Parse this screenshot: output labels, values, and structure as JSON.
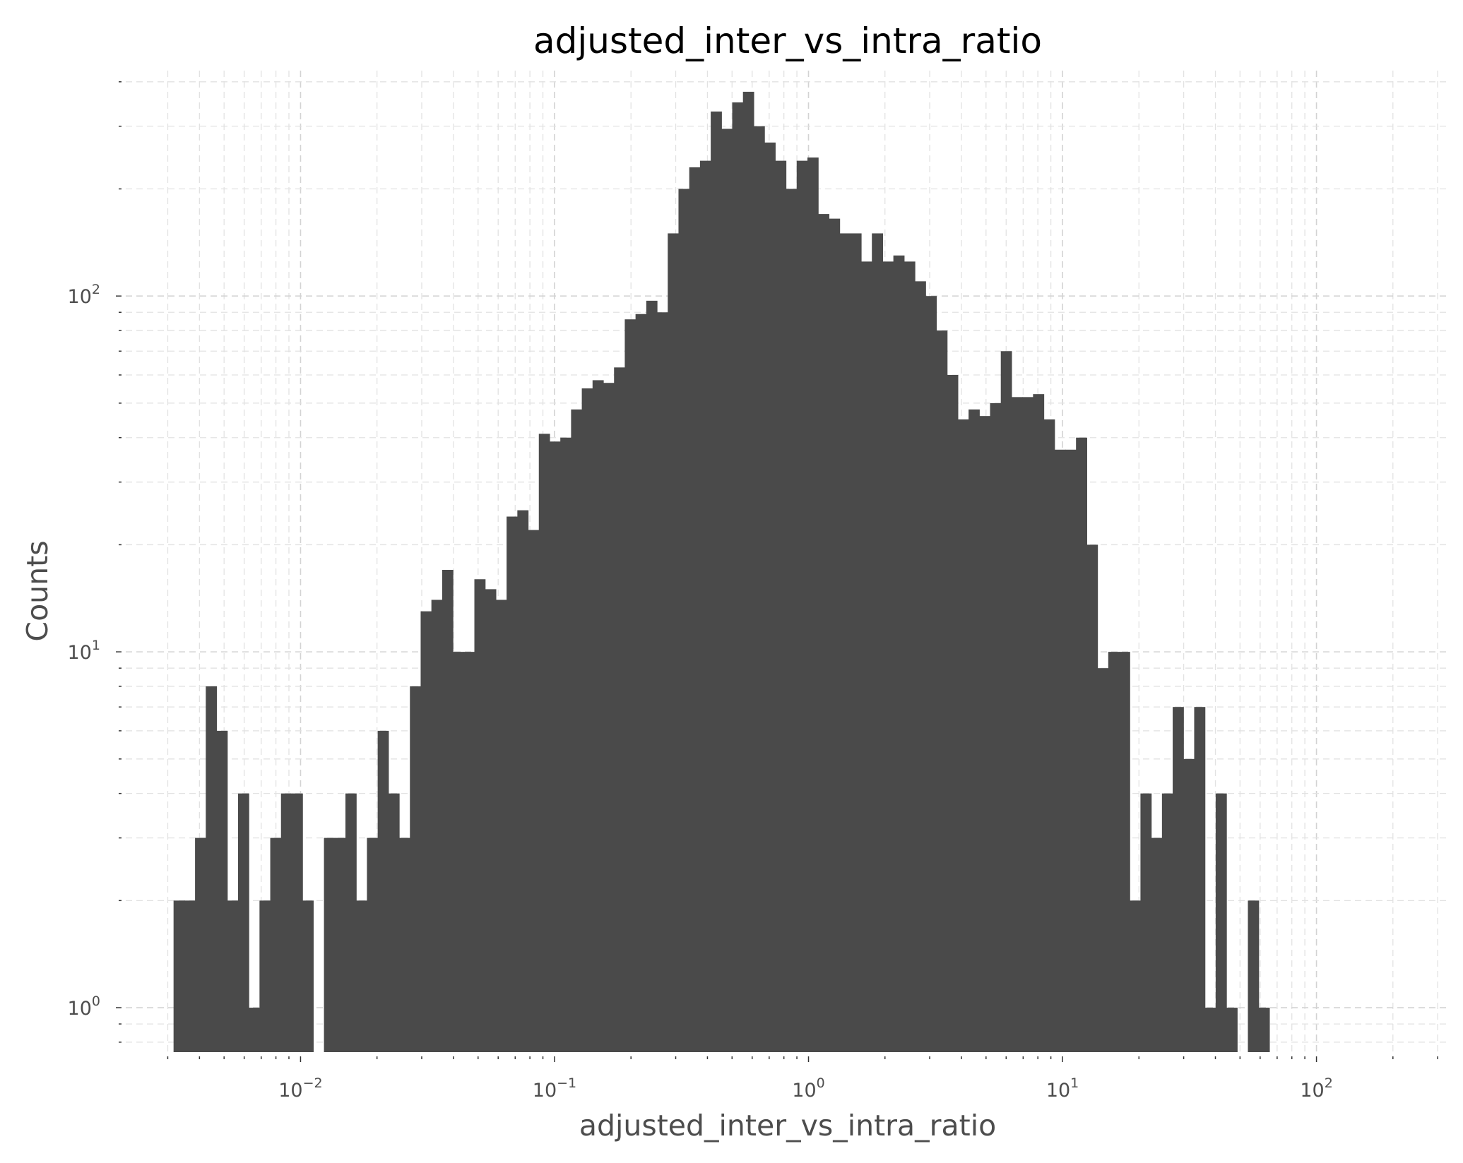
{
  "chart_data": {
    "type": "bar",
    "title": "adjusted_inter_vs_intra_ratio",
    "xlabel": "adjusted_inter_vs_intra_ratio",
    "ylabel": "Counts",
    "x_scale": "log",
    "y_scale": "log",
    "xlim": [
      0.00205,
      330
    ],
    "ylim": [
      0.75,
      430
    ],
    "grid": true,
    "bar_color": "#4a4a4a",
    "x_ticks": [
      {
        "base": "10",
        "exp": "−2",
        "value": 0.01
      },
      {
        "base": "10",
        "exp": "−1",
        "value": 0.1
      },
      {
        "base": "10",
        "exp": "0",
        "value": 1
      },
      {
        "base": "10",
        "exp": "1",
        "value": 10
      },
      {
        "base": "10",
        "exp": "2",
        "value": 100
      }
    ],
    "y_ticks": [
      {
        "base": "10",
        "exp": "0",
        "value": 1
      },
      {
        "base": "10",
        "exp": "1",
        "value": 10
      },
      {
        "base": "10",
        "exp": "2",
        "value": 100
      }
    ],
    "bins_log10_start": -2.5,
    "bins_log10_width": 0.0423,
    "counts": [
      2,
      2,
      3,
      8,
      6,
      2,
      4,
      1,
      2,
      3,
      4,
      4,
      2,
      0,
      3,
      3,
      4,
      2,
      3,
      6,
      4,
      3,
      8,
      13,
      14,
      17,
      10,
      10,
      16,
      15,
      14,
      24,
      25,
      22,
      41,
      39,
      40,
      48,
      55,
      58,
      57,
      63,
      86,
      89,
      97,
      90,
      150,
      200,
      230,
      240,
      330,
      295,
      350,
      375,
      300,
      270,
      240,
      200,
      240,
      245,
      170,
      165,
      150,
      150,
      125,
      150,
      125,
      130,
      125,
      110,
      100,
      80,
      60,
      45,
      48,
      46,
      50,
      70,
      52,
      52,
      53,
      45,
      37,
      37,
      40,
      20,
      9,
      10,
      10,
      2,
      4,
      3,
      4,
      7,
      5,
      7,
      1,
      4,
      1,
      0,
      2,
      1
    ]
  }
}
